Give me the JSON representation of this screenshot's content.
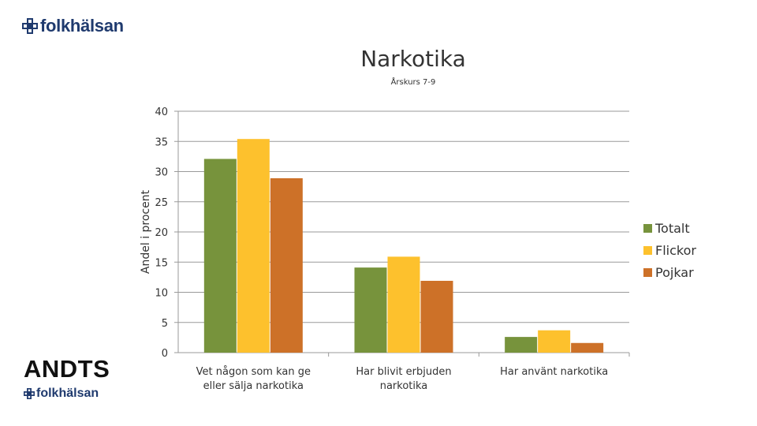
{
  "brand": {
    "name": "folkhälsan",
    "program": "ANDTS",
    "color": "#1f3a6e"
  },
  "chart_data": {
    "type": "bar",
    "title": "Narkotika",
    "subtitle": "Årskurs 7-9",
    "ylabel": "Andel i procent",
    "xlabel": "",
    "ylim": [
      0,
      40
    ],
    "yticks": [
      0,
      5,
      10,
      15,
      20,
      25,
      30,
      35,
      40
    ],
    "grid": true,
    "legend_position": "right",
    "categories": [
      [
        "Vet någon som kan ge",
        "eller sälja narkotika"
      ],
      [
        "Har blivit erbjuden",
        "narkotika"
      ],
      [
        "Har använt narkotika"
      ]
    ],
    "series": [
      {
        "name": "Totalt",
        "color": "#77933c",
        "values": [
          32.1,
          14.1,
          2.6
        ]
      },
      {
        "name": "Flickor",
        "color": "#fdc12d",
        "values": [
          35.4,
          15.9,
          3.7
        ]
      },
      {
        "name": "Pojkar",
        "color": "#cd7128",
        "values": [
          28.9,
          11.9,
          1.6
        ]
      }
    ]
  }
}
